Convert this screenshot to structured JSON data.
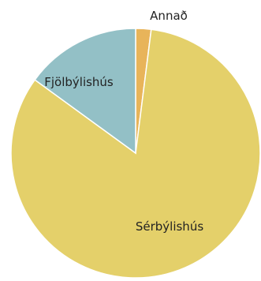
{
  "chart_data": {
    "type": "pie",
    "start_angle_deg": 0,
    "direction": "clockwise",
    "slices": [
      {
        "label": "Annað",
        "value": 2,
        "color": "#e8b45a"
      },
      {
        "label": "Sérbýlishús",
        "value": 83,
        "color": "#e4d06a"
      },
      {
        "label": "Fjölbýlishús",
        "value": 15,
        "color": "#93c0c6"
      }
    ]
  }
}
